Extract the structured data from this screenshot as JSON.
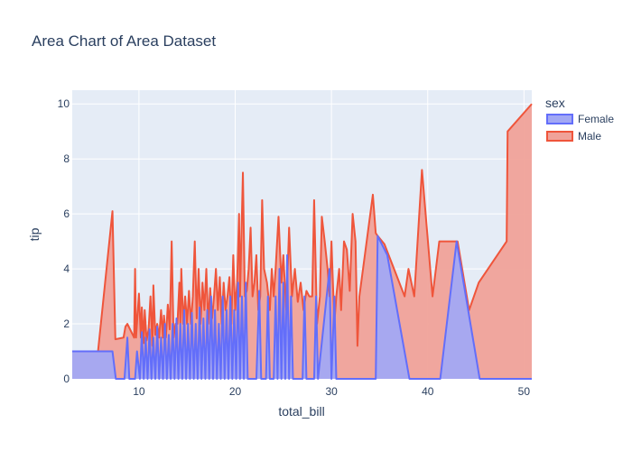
{
  "chart_data": {
    "type": "area",
    "title": "Area Chart of Area Dataset",
    "xlabel": "total_bill",
    "ylabel": "tip",
    "xlim": [
      3.07,
      50.81
    ],
    "ylim": [
      0,
      10.5
    ],
    "x_ticks": [
      10,
      20,
      30,
      40,
      50
    ],
    "y_ticks": [
      0,
      2,
      4,
      6,
      8,
      10
    ],
    "grid": true,
    "legend_title": "sex",
    "legend_position": "top-right",
    "series": [
      {
        "name": "Female",
        "color": "#636efa",
        "fill": "#a2a8f4",
        "points": [
          [
            3.07,
            1.0
          ],
          [
            7.25,
            1.0
          ],
          [
            7.6,
            0
          ],
          [
            8.5,
            0
          ],
          [
            8.8,
            1.5
          ],
          [
            9.0,
            0
          ],
          [
            9.6,
            0
          ],
          [
            9.8,
            1.0
          ],
          [
            10.1,
            0
          ],
          [
            10.3,
            1.7
          ],
          [
            10.5,
            0
          ],
          [
            10.7,
            1.5
          ],
          [
            10.9,
            0
          ],
          [
            11.1,
            1.8
          ],
          [
            11.3,
            0
          ],
          [
            11.5,
            1.5
          ],
          [
            11.7,
            0
          ],
          [
            11.9,
            1.9
          ],
          [
            12.1,
            0
          ],
          [
            12.3,
            1.5
          ],
          [
            12.5,
            0
          ],
          [
            12.7,
            2.0
          ],
          [
            12.9,
            0
          ],
          [
            13.1,
            1.6
          ],
          [
            13.3,
            0
          ],
          [
            13.5,
            2.0
          ],
          [
            13.7,
            0
          ],
          [
            13.9,
            2.2
          ],
          [
            14.1,
            0
          ],
          [
            14.3,
            2.0
          ],
          [
            14.5,
            0
          ],
          [
            14.7,
            2.5
          ],
          [
            14.9,
            0
          ],
          [
            15.1,
            2.0
          ],
          [
            15.3,
            0
          ],
          [
            15.5,
            2.4
          ],
          [
            15.7,
            0
          ],
          [
            15.9,
            2.0
          ],
          [
            16.1,
            0
          ],
          [
            16.3,
            2.6
          ],
          [
            16.5,
            0
          ],
          [
            16.7,
            2.2
          ],
          [
            16.9,
            0
          ],
          [
            17.1,
            2.5
          ],
          [
            17.3,
            0
          ],
          [
            17.5,
            3.0
          ],
          [
            17.7,
            0
          ],
          [
            17.9,
            2.5
          ],
          [
            18.1,
            0
          ],
          [
            18.3,
            2.0
          ],
          [
            18.5,
            0
          ],
          [
            18.7,
            3.0
          ],
          [
            18.9,
            0
          ],
          [
            19.1,
            2.5
          ],
          [
            19.3,
            0
          ],
          [
            19.5,
            3.0
          ],
          [
            19.7,
            0
          ],
          [
            19.9,
            2.5
          ],
          [
            20.1,
            0
          ],
          [
            20.3,
            3.5
          ],
          [
            20.5,
            0
          ],
          [
            20.7,
            3.0
          ],
          [
            20.9,
            0
          ],
          [
            21.1,
            3.5
          ],
          [
            21.3,
            0
          ],
          [
            22.2,
            0
          ],
          [
            22.5,
            3.2
          ],
          [
            22.7,
            0
          ],
          [
            23.2,
            0
          ],
          [
            23.4,
            3.0
          ],
          [
            23.6,
            0
          ],
          [
            24.0,
            0
          ],
          [
            24.2,
            3.0
          ],
          [
            24.4,
            0
          ],
          [
            24.6,
            4.0
          ],
          [
            24.8,
            0
          ],
          [
            25.0,
            3.5
          ],
          [
            25.2,
            0
          ],
          [
            25.4,
            4.5
          ],
          [
            25.6,
            0
          ],
          [
            25.8,
            3.0
          ],
          [
            26.0,
            0
          ],
          [
            27.0,
            0
          ],
          [
            27.2,
            3.0
          ],
          [
            27.4,
            0
          ],
          [
            28.2,
            0
          ],
          [
            28.4,
            3.0
          ],
          [
            28.6,
            0
          ],
          [
            29.8,
            4.0
          ],
          [
            30.0,
            0
          ],
          [
            30.3,
            3.0
          ],
          [
            30.5,
            0
          ],
          [
            34.6,
            0
          ],
          [
            34.8,
            5.2
          ],
          [
            35.8,
            4.5
          ],
          [
            38.1,
            0
          ],
          [
            41.3,
            0
          ],
          [
            43.0,
            5.0
          ],
          [
            45.4,
            0
          ],
          [
            50.81,
            0
          ]
        ]
      },
      {
        "name": "Male",
        "color": "#ef553b",
        "fill": "#f0a299",
        "points": [
          [
            3.07,
            1.0
          ],
          [
            5.75,
            1.0
          ],
          [
            7.25,
            6.1
          ],
          [
            7.55,
            1.44
          ],
          [
            8.4,
            1.5
          ],
          [
            8.6,
            1.9
          ],
          [
            8.8,
            2.0
          ],
          [
            9.5,
            1.5
          ],
          [
            9.6,
            4.0
          ],
          [
            9.7,
            1.5
          ],
          [
            10.0,
            3.1
          ],
          [
            10.2,
            1.5
          ],
          [
            10.3,
            2.6
          ],
          [
            10.5,
            1.3
          ],
          [
            10.6,
            2.5
          ],
          [
            10.8,
            1.4
          ],
          [
            11.0,
            1.8
          ],
          [
            11.2,
            3.0
          ],
          [
            11.4,
            1.2
          ],
          [
            11.5,
            3.4
          ],
          [
            11.7,
            1.6
          ],
          [
            11.9,
            2.0
          ],
          [
            12.1,
            1.5
          ],
          [
            12.3,
            2.5
          ],
          [
            12.5,
            1.5
          ],
          [
            12.6,
            2.3
          ],
          [
            12.8,
            1.5
          ],
          [
            13.0,
            2.7
          ],
          [
            13.2,
            1.8
          ],
          [
            13.4,
            5.0
          ],
          [
            13.6,
            1.5
          ],
          [
            13.8,
            2.0
          ],
          [
            14.0,
            2.0
          ],
          [
            14.2,
            3.5
          ],
          [
            14.3,
            2.0
          ],
          [
            14.4,
            4.0
          ],
          [
            14.6,
            2.0
          ],
          [
            14.8,
            3.0
          ],
          [
            15.0,
            2.0
          ],
          [
            15.2,
            3.2
          ],
          [
            15.4,
            2.0
          ],
          [
            15.6,
            3.0
          ],
          [
            15.8,
            5.0
          ],
          [
            16.0,
            2.2
          ],
          [
            16.2,
            4.0
          ],
          [
            16.4,
            2.0
          ],
          [
            16.6,
            3.5
          ],
          [
            16.8,
            2.5
          ],
          [
            17.0,
            4.0
          ],
          [
            17.2,
            2.0
          ],
          [
            17.4,
            3.3
          ],
          [
            17.6,
            2.2
          ],
          [
            17.8,
            3.0
          ],
          [
            18.0,
            4.0
          ],
          [
            18.2,
            2.5
          ],
          [
            18.4,
            3.7
          ],
          [
            18.6,
            2.0
          ],
          [
            18.8,
            3.5
          ],
          [
            19.0,
            2.5
          ],
          [
            19.2,
            3.0
          ],
          [
            19.4,
            3.7
          ],
          [
            19.6,
            2.0
          ],
          [
            19.8,
            4.5
          ],
          [
            20.0,
            2.5
          ],
          [
            20.2,
            3.5
          ],
          [
            20.4,
            6.0
          ],
          [
            20.5,
            3.0
          ],
          [
            20.6,
            4.5
          ],
          [
            20.8,
            7.5
          ],
          [
            21.0,
            3.0
          ],
          [
            21.2,
            3.2
          ],
          [
            21.4,
            4.0
          ],
          [
            21.6,
            5.5
          ],
          [
            21.8,
            3.0
          ],
          [
            22.0,
            3.5
          ],
          [
            22.2,
            4.5
          ],
          [
            22.4,
            2.5
          ],
          [
            22.6,
            3.0
          ],
          [
            22.8,
            6.5
          ],
          [
            23.0,
            4.0
          ],
          [
            23.3,
            3.5
          ],
          [
            23.6,
            2.5
          ],
          [
            23.8,
            4.0
          ],
          [
            24.0,
            3.0
          ],
          [
            24.2,
            4.0
          ],
          [
            24.5,
            5.9
          ],
          [
            24.8,
            3.5
          ],
          [
            25.0,
            4.5
          ],
          [
            25.3,
            2.5
          ],
          [
            25.6,
            5.5
          ],
          [
            25.9,
            3.0
          ],
          [
            26.2,
            4.0
          ],
          [
            26.5,
            2.8
          ],
          [
            26.8,
            3.5
          ],
          [
            27.1,
            2.5
          ],
          [
            27.4,
            3.2
          ],
          [
            27.7,
            3.0
          ],
          [
            28.0,
            3.0
          ],
          [
            28.2,
            6.5
          ],
          [
            28.5,
            2.0
          ],
          [
            28.8,
            3.0
          ],
          [
            29.0,
            5.9
          ],
          [
            29.3,
            5.0
          ],
          [
            29.6,
            4.0
          ],
          [
            29.8,
            3.0
          ],
          [
            30.0,
            5.0
          ],
          [
            30.3,
            2.0
          ],
          [
            30.5,
            3.0
          ],
          [
            30.8,
            4.0
          ],
          [
            31.0,
            2.5
          ],
          [
            31.3,
            5.0
          ],
          [
            31.6,
            4.7
          ],
          [
            31.9,
            3.2
          ],
          [
            32.2,
            6.0
          ],
          [
            32.5,
            5.0
          ],
          [
            32.7,
            1.2
          ],
          [
            32.9,
            3.0
          ],
          [
            34.3,
            6.7
          ],
          [
            34.6,
            5.3
          ],
          [
            34.8,
            5.2
          ],
          [
            35.5,
            4.9
          ],
          [
            36.5,
            4.0
          ],
          [
            37.6,
            3.0
          ],
          [
            38.0,
            4.0
          ],
          [
            38.6,
            3.0
          ],
          [
            39.4,
            7.6
          ],
          [
            40.5,
            3.0
          ],
          [
            41.2,
            5.0
          ],
          [
            43.1,
            5.0
          ],
          [
            44.3,
            2.5
          ],
          [
            45.3,
            3.5
          ],
          [
            48.2,
            5.0
          ],
          [
            48.3,
            9.0
          ],
          [
            50.81,
            10.0
          ]
        ]
      }
    ]
  }
}
